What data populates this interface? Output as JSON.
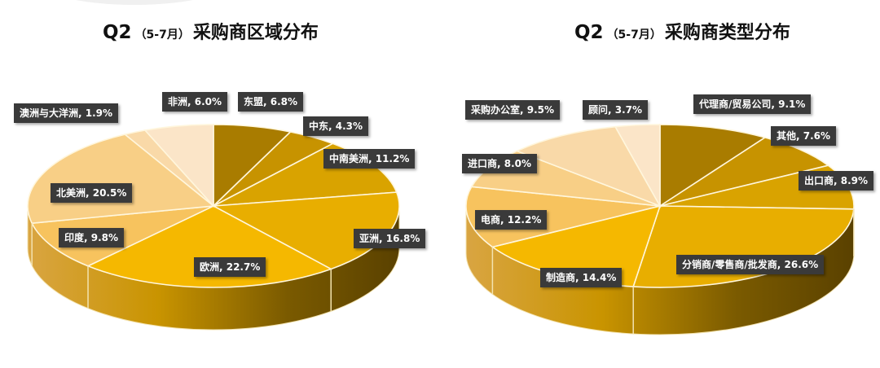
{
  "left_title": {
    "q": "Q2",
    "sub": "（5-7月）",
    "main": "采购商区域分布"
  },
  "right_title": {
    "q": "Q2",
    "sub": "（5-7月）",
    "main": "采购商类型分布"
  },
  "left_labels": [
    "东盟, 6.8%",
    "中东, 4.3%",
    "中南美洲, 11.2%",
    "亚洲, 16.8%",
    "欧洲, 22.7%",
    "印度, 9.8%",
    "北美洲, 20.5%",
    "澳洲与大洋洲, 1.9%",
    "非洲, 6.0%"
  ],
  "right_labels": [
    "代理商/贸易公司, 9.1%",
    "其他, 7.6%",
    "出口商, 8.9%",
    "分销商/零售商/批发商, 26.6%",
    "制造商, 14.4%",
    "电商, 12.2%",
    "进口商, 8.0%",
    "采购办公室, 9.5%",
    "顾问, 3.7%"
  ],
  "chart_data": [
    {
      "type": "pie",
      "title": "Q2（5-7月）采购商区域分布",
      "style": "3d",
      "categories": [
        "东盟",
        "中东",
        "中南美洲",
        "亚洲",
        "欧洲",
        "印度",
        "北美洲",
        "澳洲与大洋洲",
        "非洲"
      ],
      "values": [
        6.8,
        4.3,
        11.2,
        16.8,
        22.7,
        9.8,
        20.5,
        1.9,
        6.0
      ],
      "unit": "%",
      "colors": [
        "#a97c00",
        "#c79300",
        "#d9a300",
        "#e8ae00",
        "#f5b800",
        "#f7c35e",
        "#f8cf86",
        "#f9d9a8",
        "#fbe5c8"
      ],
      "legend": "none (data labels)"
    },
    {
      "type": "pie",
      "title": "Q2（5-7月）采购商类型分布",
      "style": "3d",
      "categories": [
        "代理商/贸易公司",
        "其他",
        "出口商",
        "分销商/零售商/批发商",
        "制造商",
        "电商",
        "进口商",
        "采购办公室",
        "顾问"
      ],
      "values": [
        9.1,
        7.6,
        8.9,
        26.6,
        14.4,
        12.2,
        8.0,
        9.5,
        3.7
      ],
      "unit": "%",
      "colors": [
        "#a97c00",
        "#c79300",
        "#d9a300",
        "#e8ae00",
        "#f5b800",
        "#f7c35e",
        "#f8cf86",
        "#f9d9a8",
        "#fbe5c8"
      ],
      "legend": "none (data labels)"
    }
  ]
}
